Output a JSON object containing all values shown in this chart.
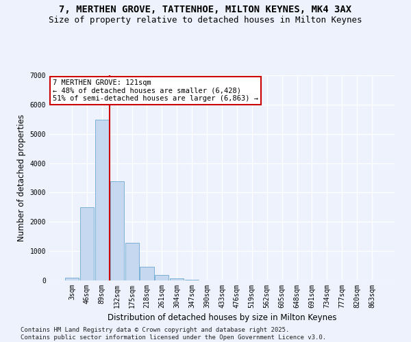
{
  "title_line1": "7, MERTHEN GROVE, TATTENHOE, MILTON KEYNES, MK4 3AX",
  "title_line2": "Size of property relative to detached houses in Milton Keynes",
  "xlabel": "Distribution of detached houses by size in Milton Keynes",
  "ylabel": "Number of detached properties",
  "categories": [
    "3sqm",
    "46sqm",
    "89sqm",
    "132sqm",
    "175sqm",
    "218sqm",
    "261sqm",
    "304sqm",
    "347sqm",
    "390sqm",
    "433sqm",
    "476sqm",
    "519sqm",
    "562sqm",
    "605sqm",
    "648sqm",
    "691sqm",
    "734sqm",
    "777sqm",
    "820sqm",
    "863sqm"
  ],
  "values": [
    90,
    2490,
    5490,
    3380,
    1290,
    460,
    190,
    80,
    20,
    5,
    3,
    2,
    1,
    0,
    0,
    0,
    0,
    0,
    0,
    0,
    0
  ],
  "bar_color": "#c5d8f0",
  "bar_edge_color": "#7ab0d8",
  "vline_color": "#cc0000",
  "vline_x_idx": 2.5,
  "annotation_text": "7 MERTHEN GROVE: 121sqm\n← 48% of detached houses are smaller (6,428)\n51% of semi-detached houses are larger (6,863) →",
  "annotation_box_color": "#ffffff",
  "annotation_border_color": "#cc0000",
  "ylim": [
    0,
    7000
  ],
  "yticks": [
    0,
    1000,
    2000,
    3000,
    4000,
    5000,
    6000,
    7000
  ],
  "background_color": "#edf2fc",
  "grid_color": "#ffffff",
  "footer_line1": "Contains HM Land Registry data © Crown copyright and database right 2025.",
  "footer_line2": "Contains public sector information licensed under the Open Government Licence v3.0.",
  "title_fontsize": 10,
  "subtitle_fontsize": 9,
  "axis_label_fontsize": 8.5,
  "tick_fontsize": 7,
  "annotation_fontsize": 7.5,
  "footer_fontsize": 6.5
}
